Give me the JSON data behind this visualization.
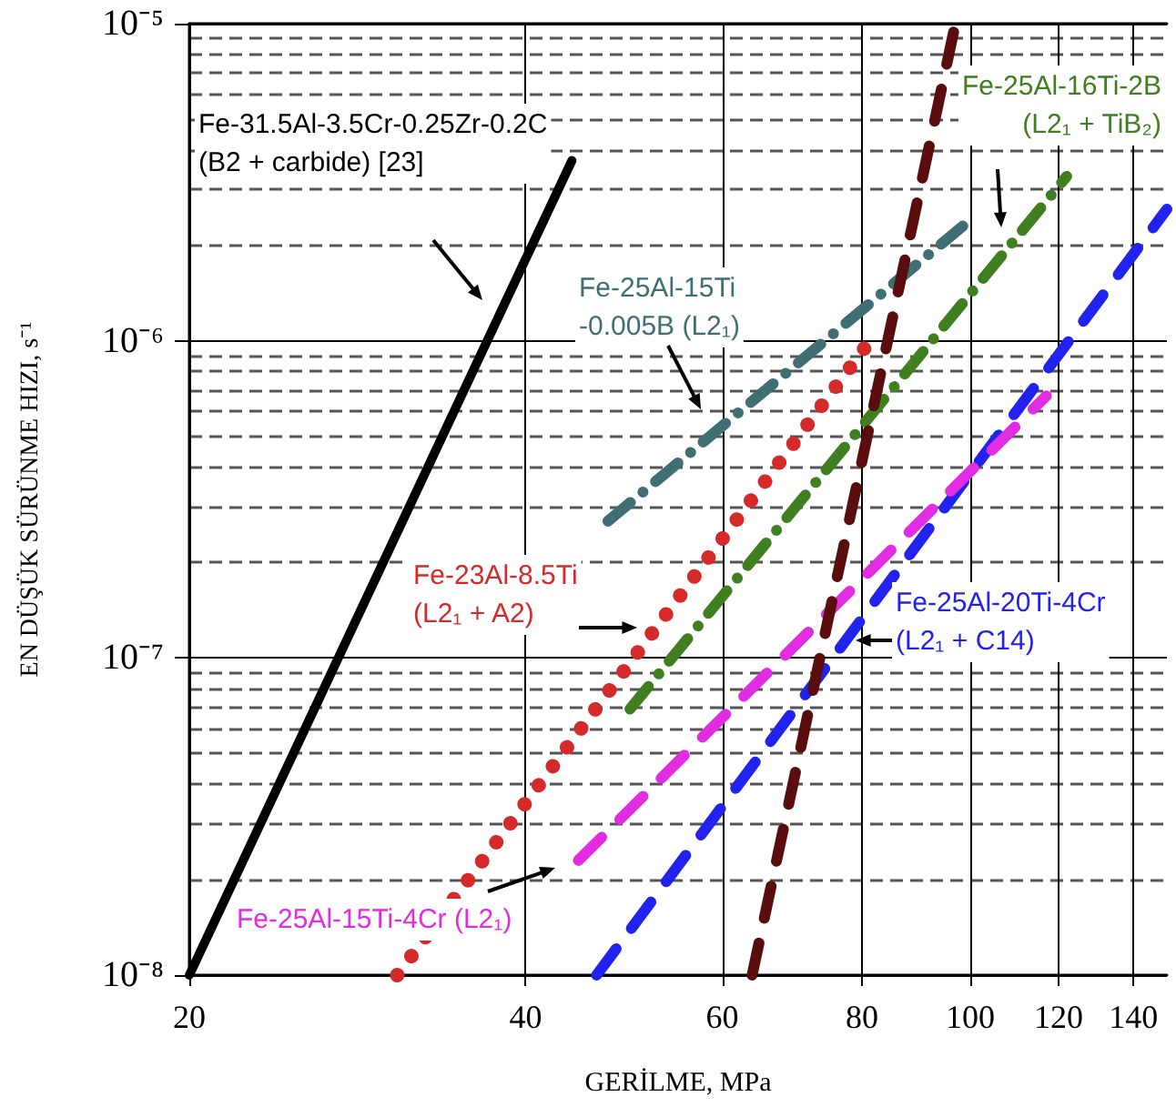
{
  "chart_data": {
    "type": "line",
    "xlabel": "GERİLME, MPa",
    "ylabel": "EN DÜŞÜK SÜRÜNME HIZI, s⁻¹",
    "log": "xy",
    "grid": true,
    "marker": "none",
    "xlim": [
      20,
      150
    ],
    "xticks": [
      20,
      40,
      60,
      80,
      100,
      120,
      140
    ],
    "ylim": [
      1e-08,
      1e-05
    ],
    "yticks": [
      {
        "value": 1e-08,
        "label": "10⁻⁸"
      },
      {
        "value": 2e-08,
        "label": null
      },
      {
        "value": 3e-08,
        "label": null
      },
      {
        "value": 4e-08,
        "label": null
      },
      {
        "value": 5e-08,
        "label": null
      },
      {
        "value": 6e-08,
        "label": null
      },
      {
        "value": 7e-08,
        "label": null
      },
      {
        "value": 8e-08,
        "label": null
      },
      {
        "value": 9e-08,
        "label": null
      },
      {
        "value": 1e-07,
        "label": "10⁻⁷"
      },
      {
        "value": 2e-07,
        "label": null
      },
      {
        "value": 3e-07,
        "label": null
      },
      {
        "value": 4e-07,
        "label": null
      },
      {
        "value": 5e-07,
        "label": null
      },
      {
        "value": 6e-07,
        "label": null
      },
      {
        "value": 7e-07,
        "label": null
      },
      {
        "value": 8e-07,
        "label": null
      },
      {
        "value": 9e-07,
        "label": null
      },
      {
        "value": 1e-06,
        "label": "10⁻⁶"
      },
      {
        "value": 2e-06,
        "label": null
      },
      {
        "value": 3e-06,
        "label": null
      },
      {
        "value": 4e-06,
        "label": null
      },
      {
        "value": 5e-06,
        "label": null
      },
      {
        "value": 6e-06,
        "label": null
      },
      {
        "value": 7e-06,
        "label": null
      },
      {
        "value": 8e-06,
        "label": null
      },
      {
        "value": 9e-06,
        "label": null
      },
      {
        "value": 1e-05,
        "label": "10⁻⁵"
      }
    ],
    "series": [
      {
        "color": "#000000",
        "line_style": "solid",
        "x": [
          20,
          44
        ],
        "values": [
          1e-08,
          3.7e-06
        ]
      },
      {
        "color": "#3f6f73",
        "line_style": "dashdot",
        "x": [
          47.4,
          98.5
        ],
        "values": [
          2.7e-07,
          2.3e-06
        ]
      },
      {
        "color": "#3f7f1f",
        "line_style": "dashdot",
        "x": [
          49.6,
          122
        ],
        "values": [
          6.9e-08,
          3.3e-06
        ]
      },
      {
        "color": "#d42a2a",
        "line_style": "dotted",
        "x": [
          30.7,
          81
        ],
        "values": [
          1e-08,
          9.8e-07
        ]
      },
      {
        "color": "#2222ee",
        "line_style": "dashed",
        "x": [
          46.3,
          150
        ],
        "values": [
          1e-08,
          2.6e-06
        ]
      },
      {
        "color": "#e22ce2",
        "line_style": "dashed",
        "x": [
          44.6,
          117
        ],
        "values": [
          2.3e-08,
          6.7e-07
        ]
      },
      {
        "color": "#5a0d0d",
        "line_style": "dashed",
        "x": [
          63.8,
          97
        ],
        "values": [
          1e-08,
          1e-05
        ]
      }
    ],
    "annotations": [
      "Fe-31.5Al-3.5Cr-0.25Zr-0.2C\n(B2 + carbide) [23]",
      "Fe-25Al-15Ti\n-0.005B (L2₁)",
      "Fe-25Al-16Ti-2B\n(L2₁ + TiB₂)",
      "Fe-23Al-8.5Ti\n(L2₁ + A2)",
      "Fe-25Al-20Ti-4Cr\n(L2₁ + C14)",
      "Fe-25Al-15Ti-4Cr (L2₁)"
    ]
  }
}
